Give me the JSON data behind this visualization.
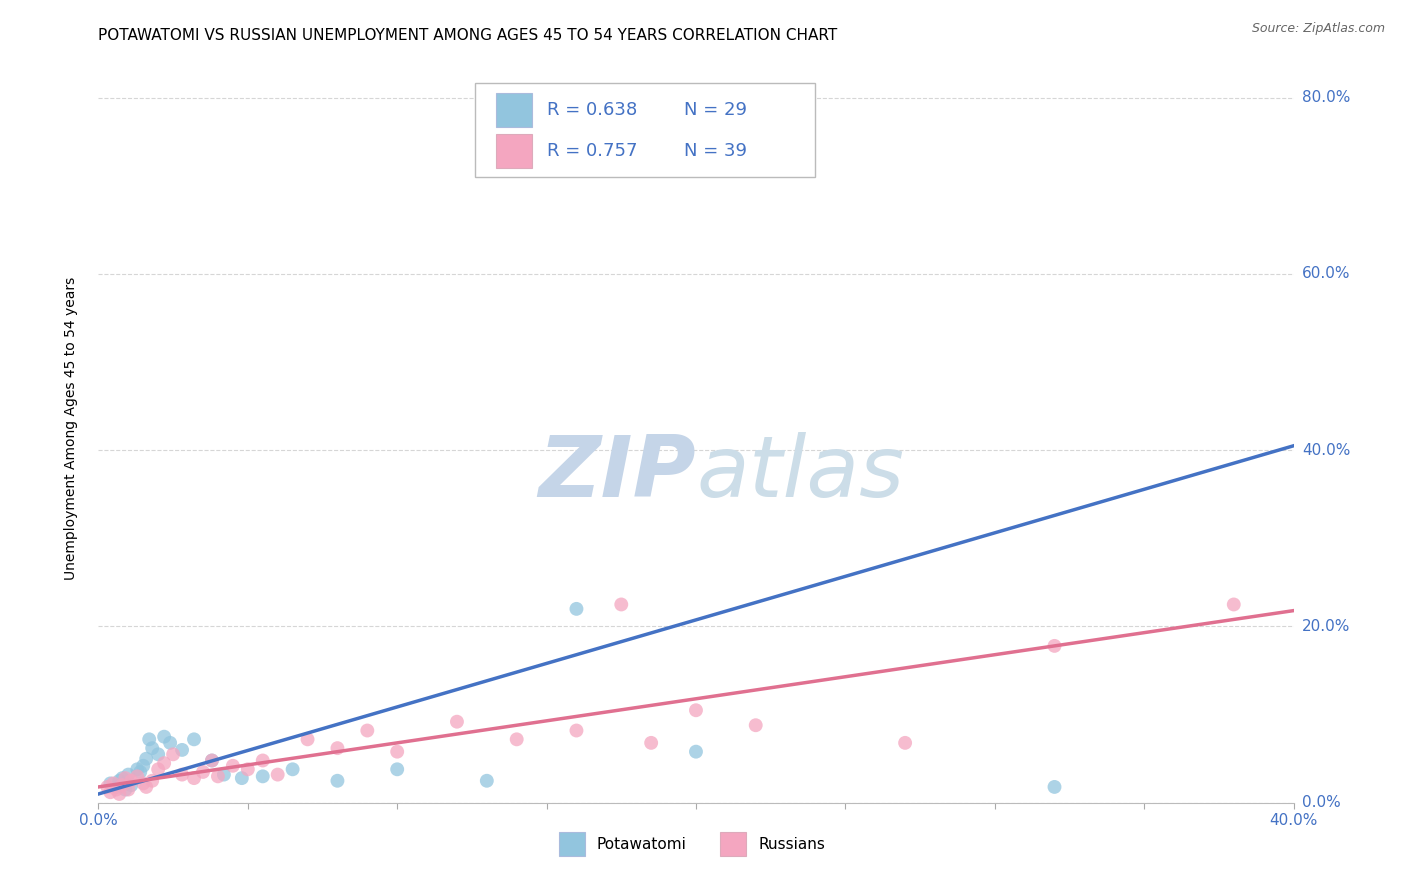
{
  "title": "POTAWATOMI VS RUSSIAN UNEMPLOYMENT AMONG AGES 45 TO 54 YEARS CORRELATION CHART",
  "source": "Source: ZipAtlas.com",
  "ylabel": "Unemployment Among Ages 45 to 54 years",
  "xlim": [
    0.0,
    0.4
  ],
  "ylim": [
    0.0,
    0.85
  ],
  "ytick_labels": [
    "0.0%",
    "20.0%",
    "40.0%",
    "60.0%",
    "80.0%"
  ],
  "ytick_values": [
    0.0,
    0.2,
    0.4,
    0.6,
    0.8
  ],
  "xtick_values": [
    0.0,
    0.05,
    0.1,
    0.15,
    0.2,
    0.25,
    0.3,
    0.35,
    0.4
  ],
  "legend_blue_label": "Potawatomi",
  "legend_pink_label": "Russians",
  "blue_R": "R = 0.638",
  "blue_N": "N = 29",
  "pink_R": "R = 0.757",
  "pink_N": "N = 39",
  "blue_color": "#92c5de",
  "pink_color": "#f4a6c0",
  "blue_line_color": "#4472c4",
  "pink_line_color": "#e07090",
  "label_color": "#4472c4",
  "watermark_zip_color": "#c8d8f0",
  "watermark_atlas_color": "#c8d8e8",
  "blue_scatter": [
    [
      0.004,
      0.022
    ],
    [
      0.006,
      0.018
    ],
    [
      0.007,
      0.025
    ],
    [
      0.008,
      0.028
    ],
    [
      0.009,
      0.015
    ],
    [
      0.01,
      0.032
    ],
    [
      0.011,
      0.02
    ],
    [
      0.013,
      0.038
    ],
    [
      0.014,
      0.035
    ],
    [
      0.015,
      0.042
    ],
    [
      0.016,
      0.05
    ],
    [
      0.017,
      0.072
    ],
    [
      0.018,
      0.062
    ],
    [
      0.02,
      0.055
    ],
    [
      0.022,
      0.075
    ],
    [
      0.024,
      0.068
    ],
    [
      0.028,
      0.06
    ],
    [
      0.032,
      0.072
    ],
    [
      0.038,
      0.048
    ],
    [
      0.042,
      0.032
    ],
    [
      0.048,
      0.028
    ],
    [
      0.055,
      0.03
    ],
    [
      0.065,
      0.038
    ],
    [
      0.08,
      0.025
    ],
    [
      0.1,
      0.038
    ],
    [
      0.13,
      0.025
    ],
    [
      0.16,
      0.22
    ],
    [
      0.2,
      0.058
    ],
    [
      0.32,
      0.018
    ]
  ],
  "pink_scatter": [
    [
      0.003,
      0.018
    ],
    [
      0.004,
      0.012
    ],
    [
      0.005,
      0.022
    ],
    [
      0.006,
      0.015
    ],
    [
      0.007,
      0.01
    ],
    [
      0.008,
      0.02
    ],
    [
      0.009,
      0.028
    ],
    [
      0.01,
      0.015
    ],
    [
      0.011,
      0.025
    ],
    [
      0.013,
      0.03
    ],
    [
      0.015,
      0.022
    ],
    [
      0.016,
      0.018
    ],
    [
      0.018,
      0.025
    ],
    [
      0.02,
      0.038
    ],
    [
      0.022,
      0.045
    ],
    [
      0.025,
      0.055
    ],
    [
      0.028,
      0.032
    ],
    [
      0.032,
      0.028
    ],
    [
      0.035,
      0.035
    ],
    [
      0.038,
      0.048
    ],
    [
      0.04,
      0.03
    ],
    [
      0.045,
      0.042
    ],
    [
      0.05,
      0.038
    ],
    [
      0.055,
      0.048
    ],
    [
      0.06,
      0.032
    ],
    [
      0.07,
      0.072
    ],
    [
      0.08,
      0.062
    ],
    [
      0.09,
      0.082
    ],
    [
      0.1,
      0.058
    ],
    [
      0.12,
      0.092
    ],
    [
      0.14,
      0.072
    ],
    [
      0.16,
      0.082
    ],
    [
      0.175,
      0.225
    ],
    [
      0.185,
      0.068
    ],
    [
      0.2,
      0.105
    ],
    [
      0.22,
      0.088
    ],
    [
      0.27,
      0.068
    ],
    [
      0.32,
      0.178
    ],
    [
      0.38,
      0.225
    ]
  ],
  "blue_trendline_x": [
    0.0,
    0.4
  ],
  "blue_trendline_y": [
    0.01,
    0.405
  ],
  "pink_trendline_x": [
    0.0,
    0.4
  ],
  "pink_trendline_y": [
    0.018,
    0.218
  ],
  "grid_color": "#cccccc",
  "background_color": "#ffffff",
  "title_fontsize": 11,
  "axis_label_fontsize": 10,
  "tick_fontsize": 11
}
